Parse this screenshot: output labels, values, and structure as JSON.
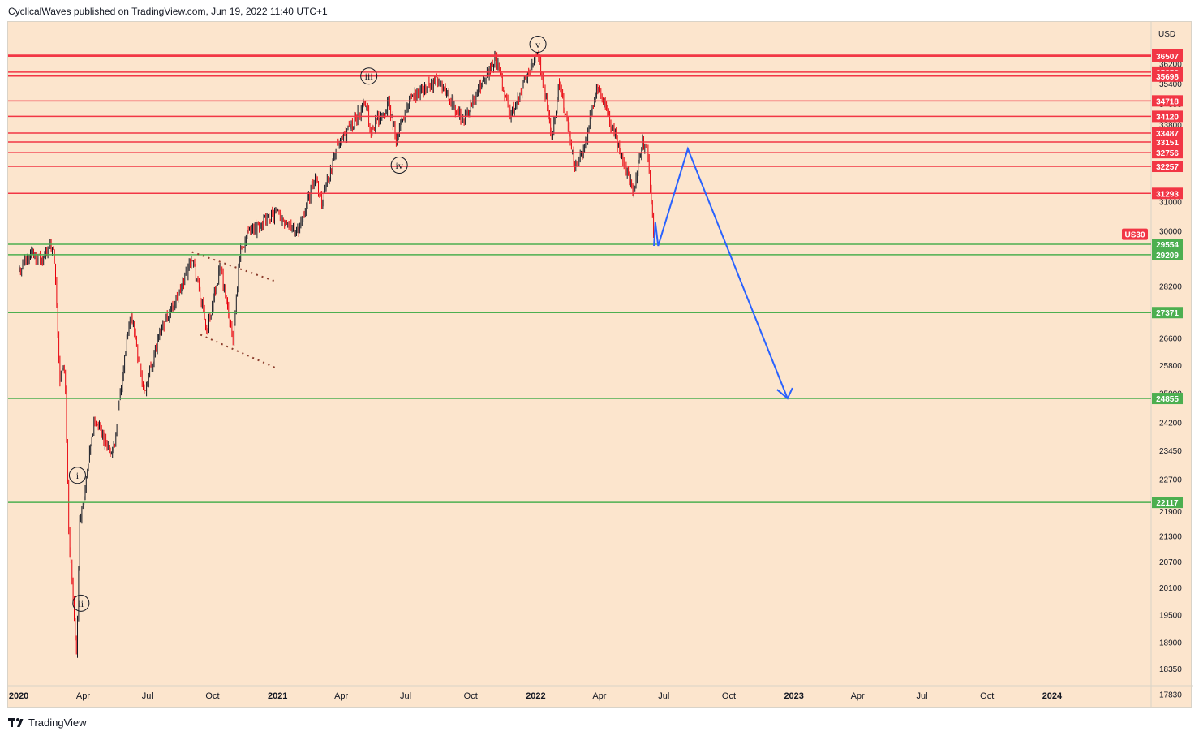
{
  "header": {
    "publisher_text": "CyclicalWaves published on TradingView.com, Jun 19, 2022 11:40 UTC+1"
  },
  "footer": {
    "brand": "TradingView",
    "icon": "tradingview-logo-icon"
  },
  "colors": {
    "background": "#fce5cd",
    "resistance": "#f23645",
    "support": "#4caf50",
    "projection": "#2962ff",
    "candle_up": "#131722",
    "candle_down": "#e8000b",
    "trendline": "#8a3b2b"
  },
  "chart_data": {
    "type": "candlestick",
    "symbol": "US30",
    "last_price": 29889,
    "currency": "USD",
    "x_axis_labels": [
      "2020",
      "Apr",
      "Jul",
      "Oct",
      "2021",
      "Apr",
      "Jul",
      "Oct",
      "2022",
      "Apr",
      "Jul",
      "Oct",
      "2023",
      "Apr",
      "Jul",
      "Oct",
      "2024"
    ],
    "y_axis_ticks": [
      36200,
      35400,
      34600,
      33800,
      31000,
      30000,
      28200,
      27400,
      26600,
      25800,
      25000,
      24200,
      23450,
      22700,
      21900,
      21300,
      20700,
      20100,
      19500,
      18900,
      18350,
      17830
    ],
    "y_range": [
      17500,
      37200
    ],
    "resistance_levels": [
      36547,
      36507,
      35858,
      35698,
      34718,
      34120,
      33487,
      33151,
      32756,
      32257,
      31293
    ],
    "support_levels": [
      29554,
      29209,
      27371,
      24855,
      22117
    ],
    "wave_labels": [
      {
        "label": "i",
        "date": "2020-03-24",
        "value": 22800
      },
      {
        "label": "ii",
        "date": "2020-03-29",
        "value": 19750
      },
      {
        "label": "iii",
        "date": "2021-05-10",
        "value": 35700
      },
      {
        "label": "iv",
        "date": "2021-06-22",
        "value": 32300
      },
      {
        "label": "v",
        "date": "2022-01-04",
        "value": 37000
      }
    ],
    "projection_path": [
      {
        "date": "2022-06-17",
        "value": 29500
      },
      {
        "date": "2022-06-19",
        "value": 30300
      },
      {
        "date": "2022-06-23",
        "value": 29500
      },
      {
        "date": "2022-08-04",
        "value": 32900
      },
      {
        "date": "2022-12-23",
        "value": 24855
      }
    ],
    "series": [
      {
        "name": "US30",
        "values": [
          [
            "2020-01-02",
            28650
          ],
          [
            "2020-01-17",
            29300
          ],
          [
            "2020-02-04",
            29000
          ],
          [
            "2020-02-12",
            29550
          ],
          [
            "2020-02-20",
            29200
          ],
          [
            "2020-02-28",
            25400
          ],
          [
            "2020-03-06",
            25800
          ],
          [
            "2020-03-12",
            21300
          ],
          [
            "2020-03-16",
            20300
          ],
          [
            "2020-03-23",
            18600
          ],
          [
            "2020-03-27",
            21600
          ],
          [
            "2020-04-06",
            22700
          ],
          [
            "2020-04-17",
            24300
          ],
          [
            "2020-05-13",
            23300
          ],
          [
            "2020-06-08",
            27400
          ],
          [
            "2020-06-26",
            25000
          ],
          [
            "2020-07-22",
            27000
          ],
          [
            "2020-08-14",
            27900
          ],
          [
            "2020-09-02",
            29200
          ],
          [
            "2020-09-23",
            26800
          ],
          [
            "2020-10-12",
            28800
          ],
          [
            "2020-10-30",
            26500
          ],
          [
            "2020-11-09",
            29400
          ],
          [
            "2020-11-24",
            30050
          ],
          [
            "2020-12-31",
            30600
          ],
          [
            "2021-01-29",
            29950
          ],
          [
            "2021-02-24",
            31900
          ],
          [
            "2021-03-04",
            30950
          ],
          [
            "2021-03-23",
            32800
          ],
          [
            "2021-05-07",
            34700
          ],
          [
            "2021-05-12",
            33600
          ],
          [
            "2021-06-07",
            34600
          ],
          [
            "2021-06-18",
            33300
          ],
          [
            "2021-07-09",
            34800
          ],
          [
            "2021-08-16",
            35600
          ],
          [
            "2021-09-20",
            33900
          ],
          [
            "2021-10-15",
            35300
          ],
          [
            "2021-11-05",
            36500
          ],
          [
            "2021-11-26",
            34100
          ],
          [
            "2022-01-04",
            36800
          ],
          [
            "2022-01-24",
            33200
          ],
          [
            "2022-02-03",
            35500
          ],
          [
            "2022-02-24",
            32400
          ],
          [
            "2022-03-08",
            32600
          ],
          [
            "2022-03-29",
            35300
          ],
          [
            "2022-04-29",
            32900
          ],
          [
            "2022-05-19",
            31300
          ],
          [
            "2022-05-31",
            33100
          ],
          [
            "2022-06-07",
            33000
          ],
          [
            "2022-06-17",
            29889
          ]
        ]
      }
    ]
  }
}
